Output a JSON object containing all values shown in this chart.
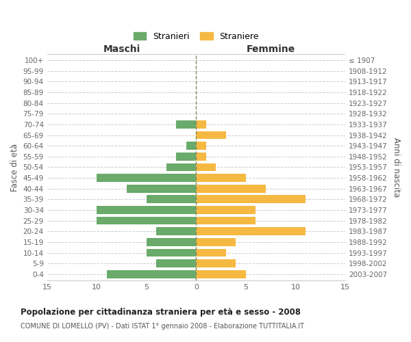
{
  "age_groups": [
    "0-4",
    "5-9",
    "10-14",
    "15-19",
    "20-24",
    "25-29",
    "30-34",
    "35-39",
    "40-44",
    "45-49",
    "50-54",
    "55-59",
    "60-64",
    "65-69",
    "70-74",
    "75-79",
    "80-84",
    "85-89",
    "90-94",
    "95-99",
    "100+"
  ],
  "birth_years": [
    "2003-2007",
    "1998-2002",
    "1993-1997",
    "1988-1992",
    "1983-1987",
    "1978-1982",
    "1973-1977",
    "1968-1972",
    "1963-1967",
    "1958-1962",
    "1953-1957",
    "1948-1952",
    "1943-1947",
    "1938-1942",
    "1933-1937",
    "1928-1932",
    "1923-1927",
    "1918-1922",
    "1913-1917",
    "1908-1912",
    "≤ 1907"
  ],
  "males": [
    9,
    4,
    5,
    5,
    4,
    10,
    10,
    5,
    7,
    10,
    3,
    2,
    1,
    0,
    2,
    0,
    0,
    0,
    0,
    0,
    0
  ],
  "females": [
    5,
    4,
    3,
    4,
    11,
    6,
    6,
    11,
    7,
    5,
    2,
    1,
    1,
    3,
    1,
    0,
    0,
    0,
    0,
    0,
    0
  ],
  "male_color": "#6aaa6a",
  "female_color": "#f5b942",
  "title": "Popolazione per cittadinanza straniera per età e sesso - 2008",
  "subtitle": "COMUNE DI LOMELLO (PV) - Dati ISTAT 1° gennaio 2008 - Elaborazione TUTTITALIA.IT",
  "xlabel_left": "Maschi",
  "xlabel_right": "Femmine",
  "ylabel_left": "Fasce di età",
  "ylabel_right": "Anni di nascita",
  "legend_male": "Stranieri",
  "legend_female": "Straniere",
  "xlim": 15,
  "background_color": "#ffffff",
  "grid_color": "#cccccc"
}
